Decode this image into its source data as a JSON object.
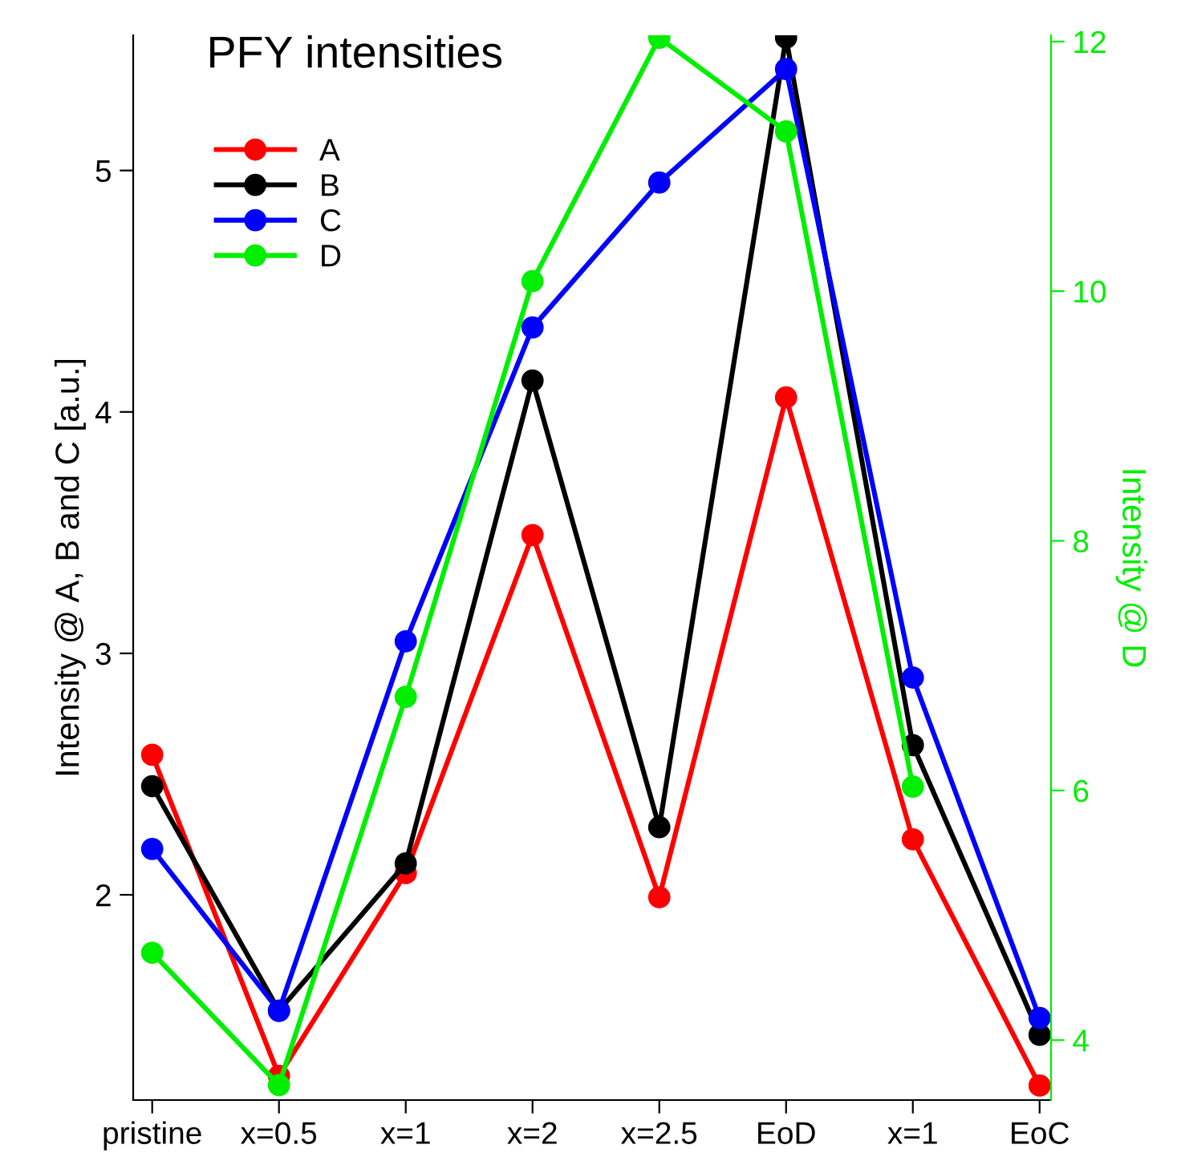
{
  "chart_data": {
    "type": "line",
    "title": "PFY intensities",
    "ylabel": "Intensity @ A, B and C [a.u.]",
    "y2label": "Intensity @ D",
    "categories": [
      "pristine",
      "x=0.5",
      "x=1",
      "x=2",
      "x=2.5",
      "EoD",
      "x=1",
      "EoC"
    ],
    "series": [
      {
        "name": "A",
        "color": "#ff0000",
        "values": [
          2.58,
          1.25,
          2.09,
          3.49,
          1.99,
          4.06,
          2.23,
          1.21
        ]
      },
      {
        "name": "B",
        "color": "#000000",
        "values": [
          2.45,
          1.52,
          2.13,
          4.13,
          2.28,
          5.55,
          2.62,
          1.42
        ]
      },
      {
        "name": "C",
        "color": "#0000ff",
        "values": [
          2.19,
          1.52,
          3.05,
          4.35,
          4.95,
          5.42,
          2.9,
          1.49
        ]
      },
      {
        "name": "D",
        "color": "#00ee00",
        "axis": "y2",
        "values": [
          4.7,
          3.64,
          6.75,
          10.08,
          12.03,
          11.28,
          6.03,
          null
        ]
      }
    ],
    "ylim": [
      1.15,
      5.56
    ],
    "yticks": [
      2,
      3,
      4,
      5
    ],
    "y2lim": [
      3.52,
      12.05
    ],
    "y2ticks": [
      4,
      6,
      8,
      10,
      12
    ],
    "legend": "top left",
    "marker": "circle",
    "line_style": "solid",
    "grid": false
  }
}
